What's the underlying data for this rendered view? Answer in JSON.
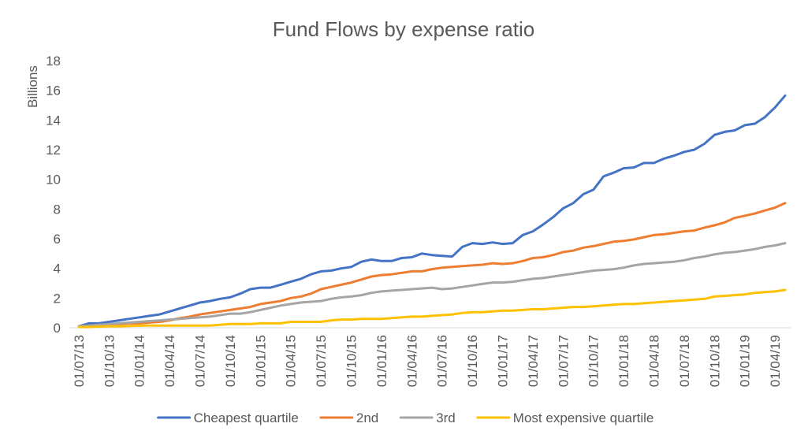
{
  "chart_data": {
    "type": "line",
    "title": "Fund Flows by expense ratio",
    "xlabel": "",
    "ylabel": "Billions",
    "ylim": [
      0,
      18
    ],
    "y_ticks": [
      0,
      2,
      4,
      6,
      8,
      10,
      12,
      14,
      16,
      18
    ],
    "x_ticks": [
      "01/07/13",
      "01/10/13",
      "01/01/14",
      "01/04/14",
      "01/07/14",
      "01/10/14",
      "01/01/15",
      "01/04/15",
      "01/07/15",
      "01/10/15",
      "01/01/16",
      "01/04/16",
      "01/07/16",
      "01/10/16",
      "01/01/17",
      "01/04/17",
      "01/07/17",
      "01/10/17",
      "01/01/18",
      "01/04/18",
      "01/07/18",
      "01/10/18",
      "01/01/19",
      "01/04/19"
    ],
    "tick_every": 3,
    "grid": false,
    "legend_position": "bottom",
    "series": [
      {
        "name": "Cheapest quartile",
        "color": "#4472C4",
        "values": [
          0.1,
          0.3,
          0.3,
          0.4,
          0.5,
          0.6,
          0.7,
          0.8,
          0.9,
          1.1,
          1.3,
          1.5,
          1.7,
          1.8,
          1.95,
          2.05,
          2.3,
          2.6,
          2.7,
          2.7,
          2.9,
          3.1,
          3.3,
          3.6,
          3.8,
          3.85,
          4.0,
          4.1,
          4.45,
          4.6,
          4.5,
          4.5,
          4.7,
          4.75,
          5.0,
          4.9,
          4.85,
          4.8,
          5.45,
          5.7,
          5.65,
          5.75,
          5.65,
          5.7,
          6.25,
          6.5,
          6.95,
          7.45,
          8.05,
          8.4,
          9.0,
          9.3,
          10.2,
          10.45,
          10.75,
          10.8,
          11.1,
          11.1,
          11.4,
          11.6,
          11.85,
          12.0,
          12.4,
          13.0,
          13.2,
          13.3,
          13.65,
          13.75,
          14.2,
          14.85,
          15.65
        ]
      },
      {
        "name": "2nd",
        "color": "#ED7D31",
        "values": [
          0.1,
          0.15,
          0.2,
          0.2,
          0.25,
          0.3,
          0.3,
          0.35,
          0.4,
          0.5,
          0.65,
          0.75,
          0.9,
          1.0,
          1.1,
          1.2,
          1.3,
          1.4,
          1.6,
          1.7,
          1.8,
          2.0,
          2.1,
          2.3,
          2.6,
          2.75,
          2.9,
          3.05,
          3.25,
          3.45,
          3.55,
          3.6,
          3.7,
          3.8,
          3.8,
          3.95,
          4.05,
          4.1,
          4.15,
          4.2,
          4.25,
          4.35,
          4.3,
          4.35,
          4.5,
          4.7,
          4.75,
          4.9,
          5.1,
          5.2,
          5.4,
          5.5,
          5.65,
          5.8,
          5.85,
          5.95,
          6.1,
          6.25,
          6.3,
          6.4,
          6.5,
          6.55,
          6.75,
          6.9,
          7.1,
          7.4,
          7.55,
          7.7,
          7.9,
          8.1,
          8.4
        ]
      },
      {
        "name": "3rd",
        "color": "#A5A5A5",
        "values": [
          0.1,
          0.15,
          0.2,
          0.25,
          0.3,
          0.35,
          0.4,
          0.45,
          0.5,
          0.55,
          0.6,
          0.65,
          0.7,
          0.75,
          0.85,
          0.95,
          0.95,
          1.05,
          1.2,
          1.35,
          1.5,
          1.6,
          1.7,
          1.75,
          1.8,
          1.95,
          2.05,
          2.1,
          2.2,
          2.35,
          2.45,
          2.5,
          2.55,
          2.6,
          2.65,
          2.7,
          2.6,
          2.65,
          2.75,
          2.85,
          2.95,
          3.05,
          3.05,
          3.1,
          3.2,
          3.3,
          3.35,
          3.45,
          3.55,
          3.65,
          3.75,
          3.85,
          3.9,
          3.95,
          4.05,
          4.2,
          4.3,
          4.35,
          4.4,
          4.45,
          4.55,
          4.7,
          4.8,
          4.95,
          5.05,
          5.1,
          5.2,
          5.3,
          5.45,
          5.55,
          5.7
        ]
      },
      {
        "name": "Most expensive quartile",
        "color": "#FFC000",
        "values": [
          0.05,
          0.05,
          0.08,
          0.1,
          0.1,
          0.12,
          0.15,
          0.15,
          0.15,
          0.15,
          0.15,
          0.15,
          0.15,
          0.15,
          0.2,
          0.25,
          0.25,
          0.25,
          0.3,
          0.3,
          0.3,
          0.4,
          0.4,
          0.4,
          0.4,
          0.5,
          0.55,
          0.55,
          0.6,
          0.6,
          0.6,
          0.65,
          0.7,
          0.75,
          0.75,
          0.8,
          0.85,
          0.9,
          1.0,
          1.05,
          1.05,
          1.1,
          1.15,
          1.15,
          1.2,
          1.25,
          1.25,
          1.3,
          1.35,
          1.4,
          1.4,
          1.45,
          1.5,
          1.55,
          1.6,
          1.6,
          1.65,
          1.7,
          1.75,
          1.8,
          1.85,
          1.9,
          1.95,
          2.1,
          2.15,
          2.2,
          2.25,
          2.35,
          2.4,
          2.45,
          2.55
        ]
      }
    ]
  },
  "colors": {
    "text": "#595959",
    "axis": "#D9D9D9",
    "background": "#FFFFFF"
  }
}
